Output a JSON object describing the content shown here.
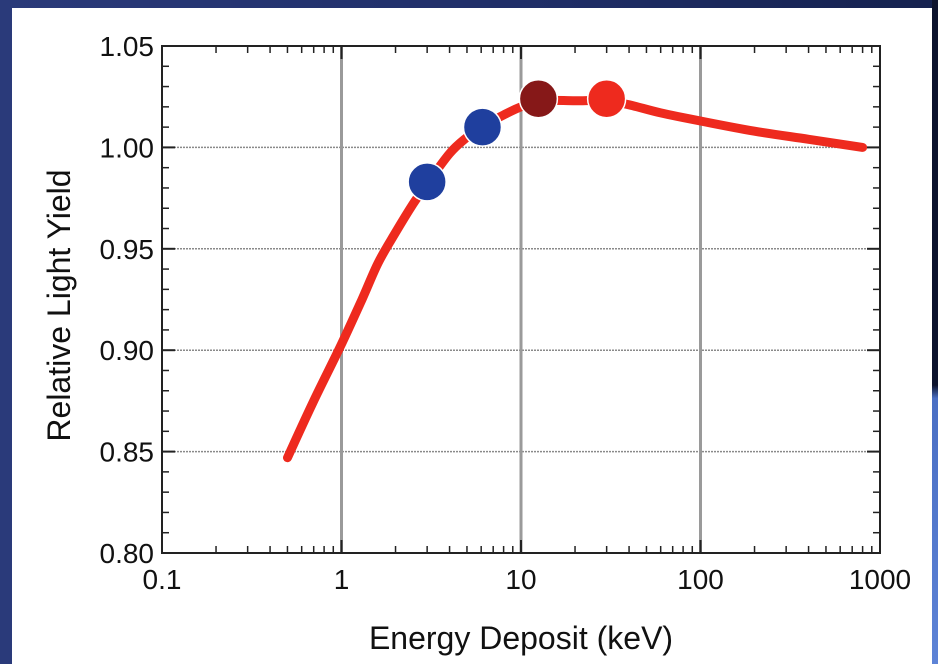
{
  "chart_data": {
    "type": "line",
    "xscale": "log",
    "xlim": [
      0.1,
      1000
    ],
    "ylim": [
      0.8,
      1.05
    ],
    "xlabel": "Energy Deposit (keV)",
    "ylabel": "Relative Light Yield",
    "xticks": [
      {
        "value": 0.1,
        "label": "0.1"
      },
      {
        "value": 1,
        "label": "1"
      },
      {
        "value": 10,
        "label": "10"
      },
      {
        "value": 100,
        "label": "100"
      },
      {
        "value": 1000,
        "label": "1000"
      }
    ],
    "yticks": [
      {
        "value": 0.8,
        "label": "0.80"
      },
      {
        "value": 0.85,
        "label": "0.85"
      },
      {
        "value": 0.9,
        "label": "0.90"
      },
      {
        "value": 0.95,
        "label": "0.95"
      },
      {
        "value": 1.0,
        "label": "1.00"
      },
      {
        "value": 1.05,
        "label": "1.05"
      }
    ],
    "grid": true,
    "curve": {
      "color": "#ee2a1e",
      "points": [
        [
          0.5,
          0.847
        ],
        [
          0.7,
          0.875
        ],
        [
          1.0,
          0.903
        ],
        [
          1.3,
          0.925
        ],
        [
          1.6,
          0.943
        ],
        [
          2.0,
          0.958
        ],
        [
          2.5,
          0.972
        ],
        [
          3.0,
          0.982
        ],
        [
          4.0,
          0.997
        ],
        [
          5.0,
          1.005
        ],
        [
          6.0,
          1.01
        ],
        [
          8.0,
          1.016
        ],
        [
          10.0,
          1.02
        ],
        [
          13.0,
          1.023
        ],
        [
          20.0,
          1.023
        ],
        [
          30.0,
          1.023
        ],
        [
          40.0,
          1.021
        ],
        [
          60.0,
          1.017
        ],
        [
          100.0,
          1.013
        ],
        [
          200.0,
          1.008
        ],
        [
          400.0,
          1.004
        ],
        [
          800.0,
          1.0
        ]
      ]
    },
    "markers": [
      {
        "x": 3.0,
        "y": 0.983,
        "color": "#1f3f9e"
      },
      {
        "x": 6.1,
        "y": 1.01,
        "color": "#1f3f9e"
      },
      {
        "x": 12.5,
        "y": 1.024,
        "color": "#861818"
      },
      {
        "x": 30.0,
        "y": 1.024,
        "color": "#ee2a1e"
      }
    ]
  }
}
